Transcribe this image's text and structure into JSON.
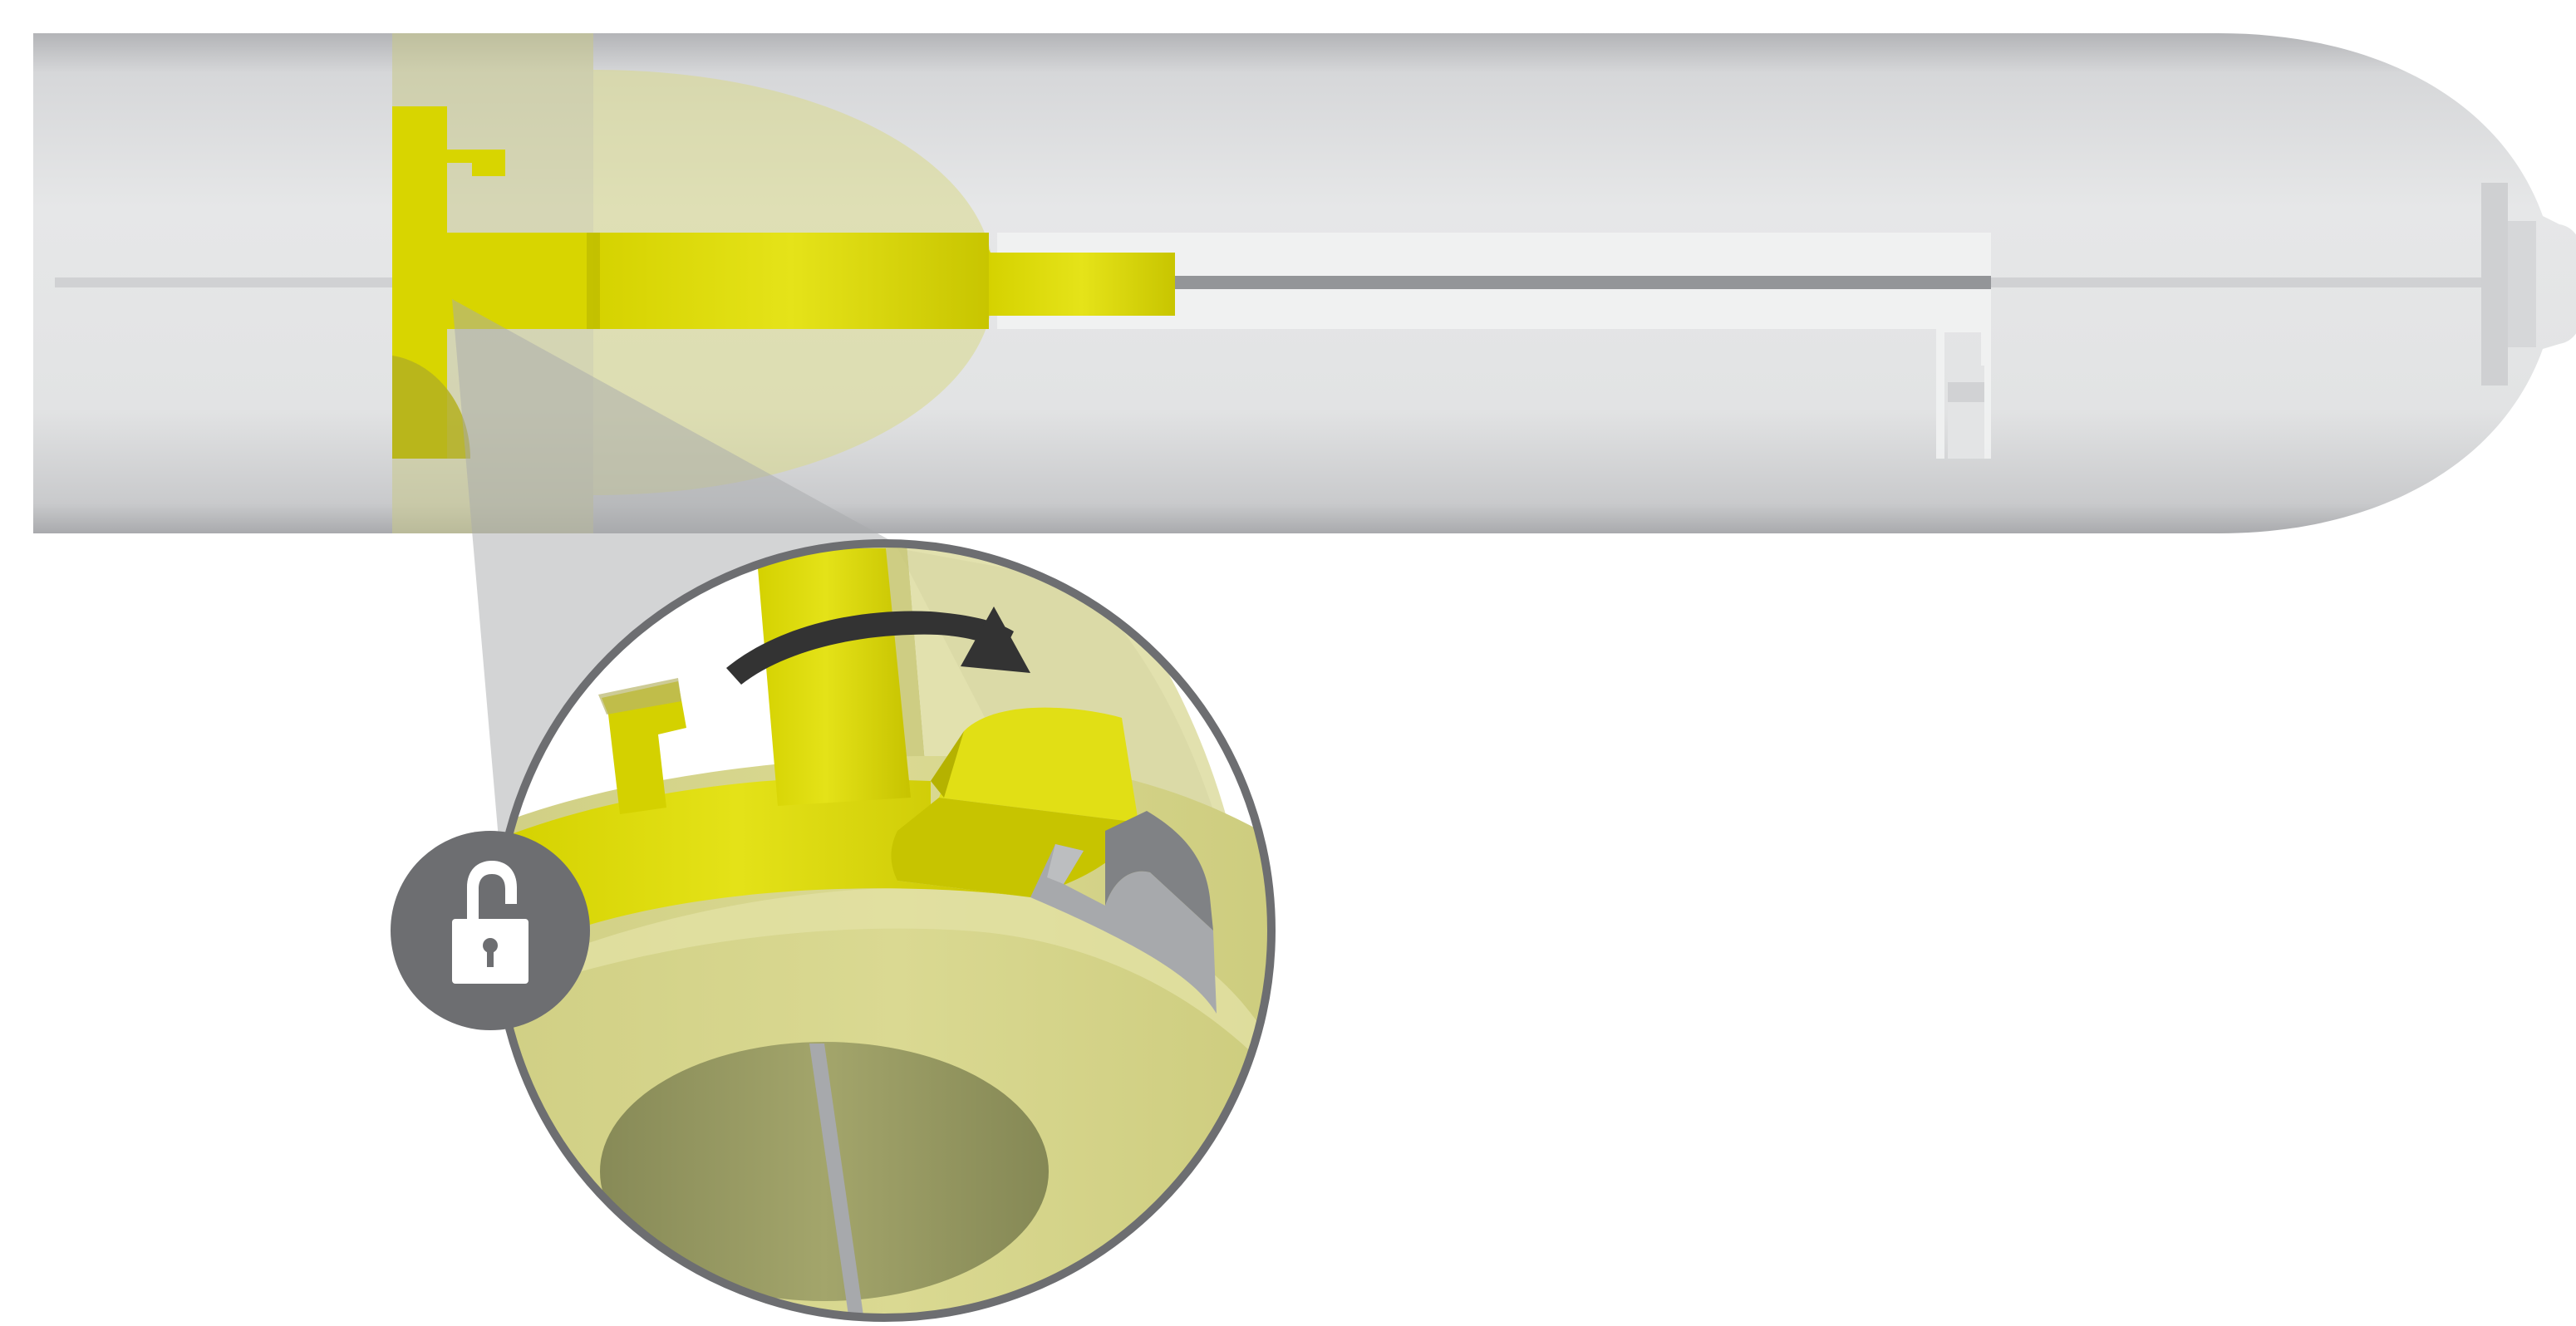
{
  "diagram": {
    "device": "injector pen",
    "state": "unlocked",
    "rotation_direction": "clockwise",
    "icons": [
      "unlock-icon",
      "rotation-arrow-icon",
      "magnifier-callout"
    ],
    "colors": {
      "barrel_light": "#e6e7e8",
      "barrel_dark": "#b9babd",
      "mechanism_yellow": "#e1df15",
      "mechanism_yellow_dark": "#c9c400",
      "window_overlay": "#d7d78a",
      "shaft_grey": "#939598",
      "lock_badge": "#6d6e71",
      "arrow": "#333333",
      "outline": "#6d6e71"
    }
  }
}
